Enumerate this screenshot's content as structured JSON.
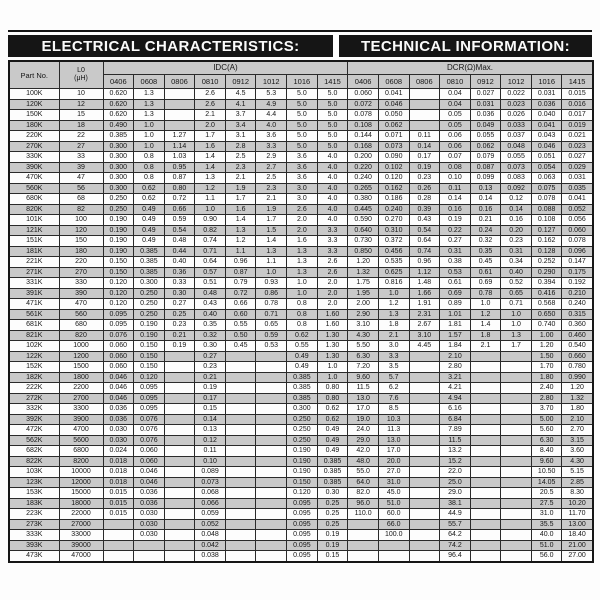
{
  "titles": {
    "left": "ELECTRICAL CHARACTERISTICS:",
    "right": "TECHNICAL INFORMATION:"
  },
  "table": {
    "part_no_header": "Part No.",
    "l0_header_line1": "L0",
    "l0_header_line2": "(μH)",
    "idc_group_header": "IDC(A)",
    "dcr_group_header": "DCR(Ω)Max.",
    "size_codes": [
      "0406",
      "0608",
      "0806",
      "0810",
      "0912",
      "1012",
      "1016",
      "1415"
    ],
    "rows": [
      {
        "part": "100K",
        "l0": "10",
        "idc": [
          "0.620",
          "1.3",
          "",
          "2.6",
          "4.5",
          "5.3",
          "5.0",
          "5.0"
        ],
        "dcr": [
          "0.060",
          "0.041",
          "",
          "0.04",
          "0.027",
          "0.022",
          "0.031",
          "0.015"
        ]
      },
      {
        "part": "120K",
        "l0": "12",
        "idc": [
          "0.620",
          "1.3",
          "",
          "2.6",
          "4.1",
          "4.9",
          "5.0",
          "5.0"
        ],
        "dcr": [
          "0.072",
          "0.046",
          "",
          "0.04",
          "0.031",
          "0.023",
          "0.036",
          "0.016"
        ]
      },
      {
        "part": "150K",
        "l0": "15",
        "idc": [
          "0.620",
          "1.3",
          "",
          "2.1",
          "3.7",
          "4.4",
          "5.0",
          "5.0"
        ],
        "dcr": [
          "0.078",
          "0.050",
          "",
          "0.05",
          "0.036",
          "0.026",
          "0.040",
          "0.017"
        ]
      },
      {
        "part": "180K",
        "l0": "18",
        "idc": [
          "0.490",
          "1.0",
          "",
          "2.0",
          "3.4",
          "4.0",
          "5.0",
          "5.0"
        ],
        "dcr": [
          "0.108",
          "0.062",
          "",
          "0.05",
          "0.049",
          "0.033",
          "0.041",
          "0.019"
        ]
      },
      {
        "part": "220K",
        "l0": "22",
        "idc": [
          "0.385",
          "1.0",
          "1.27",
          "1.7",
          "3.1",
          "3.6",
          "5.0",
          "5.0"
        ],
        "dcr": [
          "0.144",
          "0.071",
          "0.11",
          "0.06",
          "0.055",
          "0.037",
          "0.043",
          "0.021"
        ]
      },
      {
        "part": "270K",
        "l0": "27",
        "idc": [
          "0.300",
          "1.0",
          "1.14",
          "1.6",
          "2.8",
          "3.3",
          "5.0",
          "5.0"
        ],
        "dcr": [
          "0.168",
          "0.073",
          "0.14",
          "0.06",
          "0.062",
          "0.048",
          "0.046",
          "0.023"
        ]
      },
      {
        "part": "330K",
        "l0": "33",
        "idc": [
          "0.300",
          "0.8",
          "1.03",
          "1.4",
          "2.5",
          "2.9",
          "3.6",
          "4.0"
        ],
        "dcr": [
          "0.200",
          "0.090",
          "0.17",
          "0.07",
          "0.079",
          "0.055",
          "0.051",
          "0.027"
        ]
      },
      {
        "part": "390K",
        "l0": "39",
        "idc": [
          "0.300",
          "0.8",
          "0.95",
          "1.4",
          "2.3",
          "2.7",
          "3.6",
          "4.0"
        ],
        "dcr": [
          "0.220",
          "0.102",
          "0.19",
          "0.08",
          "0.087",
          "0.073",
          "0.054",
          "0.029"
        ]
      },
      {
        "part": "470K",
        "l0": "47",
        "idc": [
          "0.300",
          "0.8",
          "0.87",
          "1.3",
          "2.1",
          "2.5",
          "3.6",
          "4.0"
        ],
        "dcr": [
          "0.240",
          "0.120",
          "0.23",
          "0.10",
          "0.099",
          "0.083",
          "0.063",
          "0.031"
        ]
      },
      {
        "part": "560K",
        "l0": "56",
        "idc": [
          "0.300",
          "0.62",
          "0.80",
          "1.2",
          "1.9",
          "2.3",
          "3.0",
          "4.0"
        ],
        "dcr": [
          "0.265",
          "0.162",
          "0.26",
          "0.11",
          "0.13",
          "0.092",
          "0.075",
          "0.035"
        ]
      },
      {
        "part": "680K",
        "l0": "68",
        "idc": [
          "0.250",
          "0.62",
          "0.72",
          "1.1",
          "1.7",
          "2.1",
          "3.0",
          "4.0"
        ],
        "dcr": [
          "0.380",
          "0.186",
          "0.28",
          "0.14",
          "0.14",
          "0.12",
          "0.078",
          "0.041"
        ]
      },
      {
        "part": "820K",
        "l0": "82",
        "idc": [
          "0.250",
          "0.49",
          "0.66",
          "1.0",
          "1.6",
          "1.9",
          "2.6",
          "4.0"
        ],
        "dcr": [
          "0.445",
          "0.240",
          "0.39",
          "0.16",
          "0.16",
          "0.14",
          "0.088",
          "0.052"
        ]
      },
      {
        "part": "101K",
        "l0": "100",
        "idc": [
          "0.190",
          "0.49",
          "0.59",
          "0.90",
          "1.4",
          "1.7",
          "2.0",
          "4.0"
        ],
        "dcr": [
          "0.590",
          "0.270",
          "0.43",
          "0.19",
          "0.21",
          "0.16",
          "0.108",
          "0.056"
        ]
      },
      {
        "part": "121K",
        "l0": "120",
        "idc": [
          "0.190",
          "0.49",
          "0.54",
          "0.82",
          "1.3",
          "1.5",
          "2.0",
          "3.3"
        ],
        "dcr": [
          "0.640",
          "0.310",
          "0.54",
          "0.22",
          "0.24",
          "0.20",
          "0.127",
          "0.060"
        ]
      },
      {
        "part": "151K",
        "l0": "150",
        "idc": [
          "0.190",
          "0.49",
          "0.48",
          "0.74",
          "1.2",
          "1.4",
          "1.6",
          "3.3"
        ],
        "dcr": [
          "0.730",
          "0.372",
          "0.64",
          "0.27",
          "0.32",
          "0.23",
          "0.162",
          "0.078"
        ]
      },
      {
        "part": "181K",
        "l0": "180",
        "idc": [
          "0.190",
          "0.385",
          "0.44",
          "0.71",
          "1.1",
          "1.3",
          "1.3",
          "3.3"
        ],
        "dcr": [
          "0.850",
          "0.456",
          "0.74",
          "0.31",
          "0.35",
          "0.31",
          "0.128",
          "0.096"
        ]
      },
      {
        "part": "221K",
        "l0": "220",
        "idc": [
          "0.150",
          "0.385",
          "0.40",
          "0.64",
          "0.96",
          "1.1",
          "1.3",
          "2.6"
        ],
        "dcr": [
          "1.20",
          "0.535",
          "0.96",
          "0.38",
          "0.45",
          "0.34",
          "0.252",
          "0.147"
        ]
      },
      {
        "part": "271K",
        "l0": "270",
        "idc": [
          "0.150",
          "0.385",
          "0.36",
          "0.57",
          "0.87",
          "1.0",
          "1.3",
          "2.6"
        ],
        "dcr": [
          "1.32",
          "0.625",
          "1.12",
          "0.53",
          "0.61",
          "0.40",
          "0.290",
          "0.175"
        ]
      },
      {
        "part": "331K",
        "l0": "330",
        "idc": [
          "0.120",
          "0.300",
          "0.33",
          "0.51",
          "0.79",
          "0.93",
          "1.0",
          "2.0"
        ],
        "dcr": [
          "1.75",
          "0.816",
          "1.48",
          "0.61",
          "0.69",
          "0.52",
          "0.394",
          "0.192"
        ]
      },
      {
        "part": "391K",
        "l0": "390",
        "idc": [
          "0.120",
          "0.250",
          "0.30",
          "0.48",
          "0.72",
          "0.86",
          "1.0",
          "2.0"
        ],
        "dcr": [
          "1.95",
          "1.0",
          "1.66",
          "0.69",
          "0.78",
          "0.65",
          "0.416",
          "0.210"
        ]
      },
      {
        "part": "471K",
        "l0": "470",
        "idc": [
          "0.120",
          "0.250",
          "0.27",
          "0.43",
          "0.66",
          "0.78",
          "0.8",
          "2.0"
        ],
        "dcr": [
          "2.00",
          "1.2",
          "1.91",
          "0.89",
          "1.0",
          "0.71",
          "0.568",
          "0.240"
        ]
      },
      {
        "part": "561K",
        "l0": "560",
        "idc": [
          "0.095",
          "0.250",
          "0.25",
          "0.40",
          "0.60",
          "0.71",
          "0.8",
          "1.60"
        ],
        "dcr": [
          "2.90",
          "1.3",
          "2.31",
          "1.01",
          "1.2",
          "1.0",
          "0.650",
          "0.315"
        ]
      },
      {
        "part": "681K",
        "l0": "680",
        "idc": [
          "0.095",
          "0.190",
          "0.23",
          "0.35",
          "0.55",
          "0.65",
          "0.8",
          "1.60"
        ],
        "dcr": [
          "3.10",
          "1.8",
          "2.67",
          "1.81",
          "1.4",
          "1.0",
          "0.740",
          "0.360"
        ]
      },
      {
        "part": "821K",
        "l0": "820",
        "idc": [
          "0.076",
          "0.190",
          "0.21",
          "0.32",
          "0.50",
          "0.59",
          "0.62",
          "1.30"
        ],
        "dcr": [
          "4.30",
          "2.1",
          "3.10",
          "1.57",
          "1.8",
          "1.3",
          "1.00",
          "0.460"
        ]
      },
      {
        "part": "102K",
        "l0": "1000",
        "idc": [
          "0.060",
          "0.150",
          "0.19",
          "0.30",
          "0.45",
          "0.53",
          "0.55",
          "1.30"
        ],
        "dcr": [
          "5.50",
          "3.0",
          "4.45",
          "1.84",
          "2.1",
          "1.7",
          "1.20",
          "0.540"
        ]
      },
      {
        "part": "122K",
        "l0": "1200",
        "idc": [
          "0.060",
          "0.150",
          "",
          "0.27",
          "",
          "",
          "0.49",
          "1.30"
        ],
        "dcr": [
          "6.30",
          "3.3",
          "",
          "2.10",
          "",
          "",
          "1.50",
          "0.660"
        ]
      },
      {
        "part": "152K",
        "l0": "1500",
        "idc": [
          "0.060",
          "0.150",
          "",
          "0.23",
          "",
          "",
          "0.49",
          "1.0"
        ],
        "dcr": [
          "7.20",
          "3.5",
          "",
          "2.80",
          "",
          "",
          "1.70",
          "0.780"
        ]
      },
      {
        "part": "182K",
        "l0": "1800",
        "idc": [
          "0.046",
          "0.120",
          "",
          "0.21",
          "",
          "",
          "0.385",
          "1.0"
        ],
        "dcr": [
          "9.60",
          "5.7",
          "",
          "3.21",
          "",
          "",
          "1.80",
          "0.990"
        ]
      },
      {
        "part": "222K",
        "l0": "2200",
        "idc": [
          "0.046",
          "0.095",
          "",
          "0.19",
          "",
          "",
          "0.385",
          "0.80"
        ],
        "dcr": [
          "11.5",
          "6.2",
          "",
          "4.21",
          "",
          "",
          "2.40",
          "1.20"
        ]
      },
      {
        "part": "272K",
        "l0": "2700",
        "idc": [
          "0.046",
          "0.095",
          "",
          "0.17",
          "",
          "",
          "0.385",
          "0.80"
        ],
        "dcr": [
          "13.0",
          "7.6",
          "",
          "4.94",
          "",
          "",
          "2.80",
          "1.32"
        ]
      },
      {
        "part": "332K",
        "l0": "3300",
        "idc": [
          "0.036",
          "0.095",
          "",
          "0.15",
          "",
          "",
          "0.300",
          "0.62"
        ],
        "dcr": [
          "17.0",
          "8.5",
          "",
          "6.16",
          "",
          "",
          "3.70",
          "1.80"
        ]
      },
      {
        "part": "392K",
        "l0": "3900",
        "idc": [
          "0.036",
          "0.076",
          "",
          "0.14",
          "",
          "",
          "0.250",
          "0.62"
        ],
        "dcr": [
          "19.0",
          "10.3",
          "",
          "6.84",
          "",
          "",
          "5.00",
          "2.10"
        ]
      },
      {
        "part": "472K",
        "l0": "4700",
        "idc": [
          "0.030",
          "0.076",
          "",
          "0.13",
          "",
          "",
          "0.250",
          "0.49"
        ],
        "dcr": [
          "24.0",
          "11.3",
          "",
          "7.89",
          "",
          "",
          "5.60",
          "2.70"
        ]
      },
      {
        "part": "562K",
        "l0": "5600",
        "idc": [
          "0.030",
          "0.076",
          "",
          "0.12",
          "",
          "",
          "0.250",
          "0.49"
        ],
        "dcr": [
          "29.0",
          "13.0",
          "",
          "11.5",
          "",
          "",
          "6.30",
          "3.15"
        ]
      },
      {
        "part": "682K",
        "l0": "6800",
        "idc": [
          "0.024",
          "0.060",
          "",
          "0.11",
          "",
          "",
          "0.190",
          "0.49"
        ],
        "dcr": [
          "42.0",
          "17.0",
          "",
          "13.2",
          "",
          "",
          "8.40",
          "3.60"
        ]
      },
      {
        "part": "822K",
        "l0": "8200",
        "idc": [
          "0.018",
          "0.060",
          "",
          "0.10",
          "",
          "",
          "0.190",
          "0.385"
        ],
        "dcr": [
          "48.0",
          "20.0",
          "",
          "15.2",
          "",
          "",
          "9.60",
          "4.30"
        ]
      },
      {
        "part": "103K",
        "l0": "10000",
        "idc": [
          "0.018",
          "0.046",
          "",
          "0.089",
          "",
          "",
          "0.190",
          "0.385"
        ],
        "dcr": [
          "55.0",
          "27.0",
          "",
          "22.0",
          "",
          "",
          "10.50",
          "5.15"
        ]
      },
      {
        "part": "123K",
        "l0": "12000",
        "idc": [
          "0.018",
          "0.046",
          "",
          "0.073",
          "",
          "",
          "0.150",
          "0.385"
        ],
        "dcr": [
          "64.0",
          "31.0",
          "",
          "25.0",
          "",
          "",
          "14.05",
          "2.85"
        ]
      },
      {
        "part": "153K",
        "l0": "15000",
        "idc": [
          "0.015",
          "0.036",
          "",
          "0.068",
          "",
          "",
          "0.120",
          "0.30"
        ],
        "dcr": [
          "82.0",
          "45.0",
          "",
          "29.0",
          "",
          "",
          "20.5",
          "8.30"
        ]
      },
      {
        "part": "183K",
        "l0": "18000",
        "idc": [
          "0.015",
          "0.036",
          "",
          "0.066",
          "",
          "",
          "0.095",
          "0.25"
        ],
        "dcr": [
          "96.0",
          "51.0",
          "",
          "38.1",
          "",
          "",
          "27.5",
          "10.20"
        ]
      },
      {
        "part": "223K",
        "l0": "22000",
        "idc": [
          "0.015",
          "0.030",
          "",
          "0.059",
          "",
          "",
          "0.095",
          "0.25"
        ],
        "dcr": [
          "110.0",
          "60.0",
          "",
          "44.9",
          "",
          "",
          "31.0",
          "11.70"
        ]
      },
      {
        "part": "273K",
        "l0": "27000",
        "idc": [
          "",
          "0.030",
          "",
          "0.052",
          "",
          "",
          "0.095",
          "0.25"
        ],
        "dcr": [
          "",
          "66.0",
          "",
          "55.7",
          "",
          "",
          "35.5",
          "13.00"
        ]
      },
      {
        "part": "333K",
        "l0": "33000",
        "idc": [
          "",
          "0.030",
          "",
          "0.048",
          "",
          "",
          "0.095",
          "0.19"
        ],
        "dcr": [
          "",
          "100.0",
          "",
          "64.2",
          "",
          "",
          "40.0",
          "18.40"
        ]
      },
      {
        "part": "393K",
        "l0": "39000",
        "idc": [
          "",
          "",
          "",
          "0.042",
          "",
          "",
          "0.095",
          "0.19"
        ],
        "dcr": [
          "",
          "",
          "",
          "74.2",
          "",
          "",
          "51.0",
          "21.00"
        ]
      },
      {
        "part": "473K",
        "l0": "47000",
        "idc": [
          "",
          "",
          "",
          "0.038",
          "",
          "",
          "0.095",
          "0.15"
        ],
        "dcr": [
          "",
          "",
          "",
          "96.4",
          "",
          "",
          "56.0",
          "27.00"
        ]
      }
    ]
  },
  "colors": {
    "title_bar_bg": "#151515",
    "title_bar_text": "#fafafa",
    "stripe_gray": "#c9c9c9",
    "border": "#2a2a2a"
  }
}
